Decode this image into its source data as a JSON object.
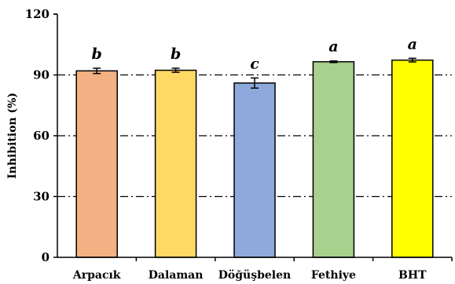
{
  "chart_data": {
    "type": "bar",
    "title": "",
    "xlabel": "",
    "ylabel": "Inhibition (%)",
    "ylim": [
      0,
      120
    ],
    "yticks": [
      "0",
      "30",
      "60",
      "90",
      "120"
    ],
    "grid": "dash-dot horizontal lines at 30, 60, 90",
    "categories": [
      "Arpacık",
      "Dalaman",
      "Döğüşbelen",
      "Fethiye",
      "BHT"
    ],
    "values": [
      92.0,
      92.3,
      86.0,
      96.5,
      97.3
    ],
    "errors": [
      1.3,
      1.0,
      2.5,
      0.4,
      0.9
    ],
    "significance_letters": [
      "b",
      "b",
      "c",
      "a",
      "a"
    ],
    "colors": [
      "#F4B183",
      "#FFD966",
      "#8EA9DB",
      "#A9D18E",
      "#FFFF00"
    ]
  }
}
